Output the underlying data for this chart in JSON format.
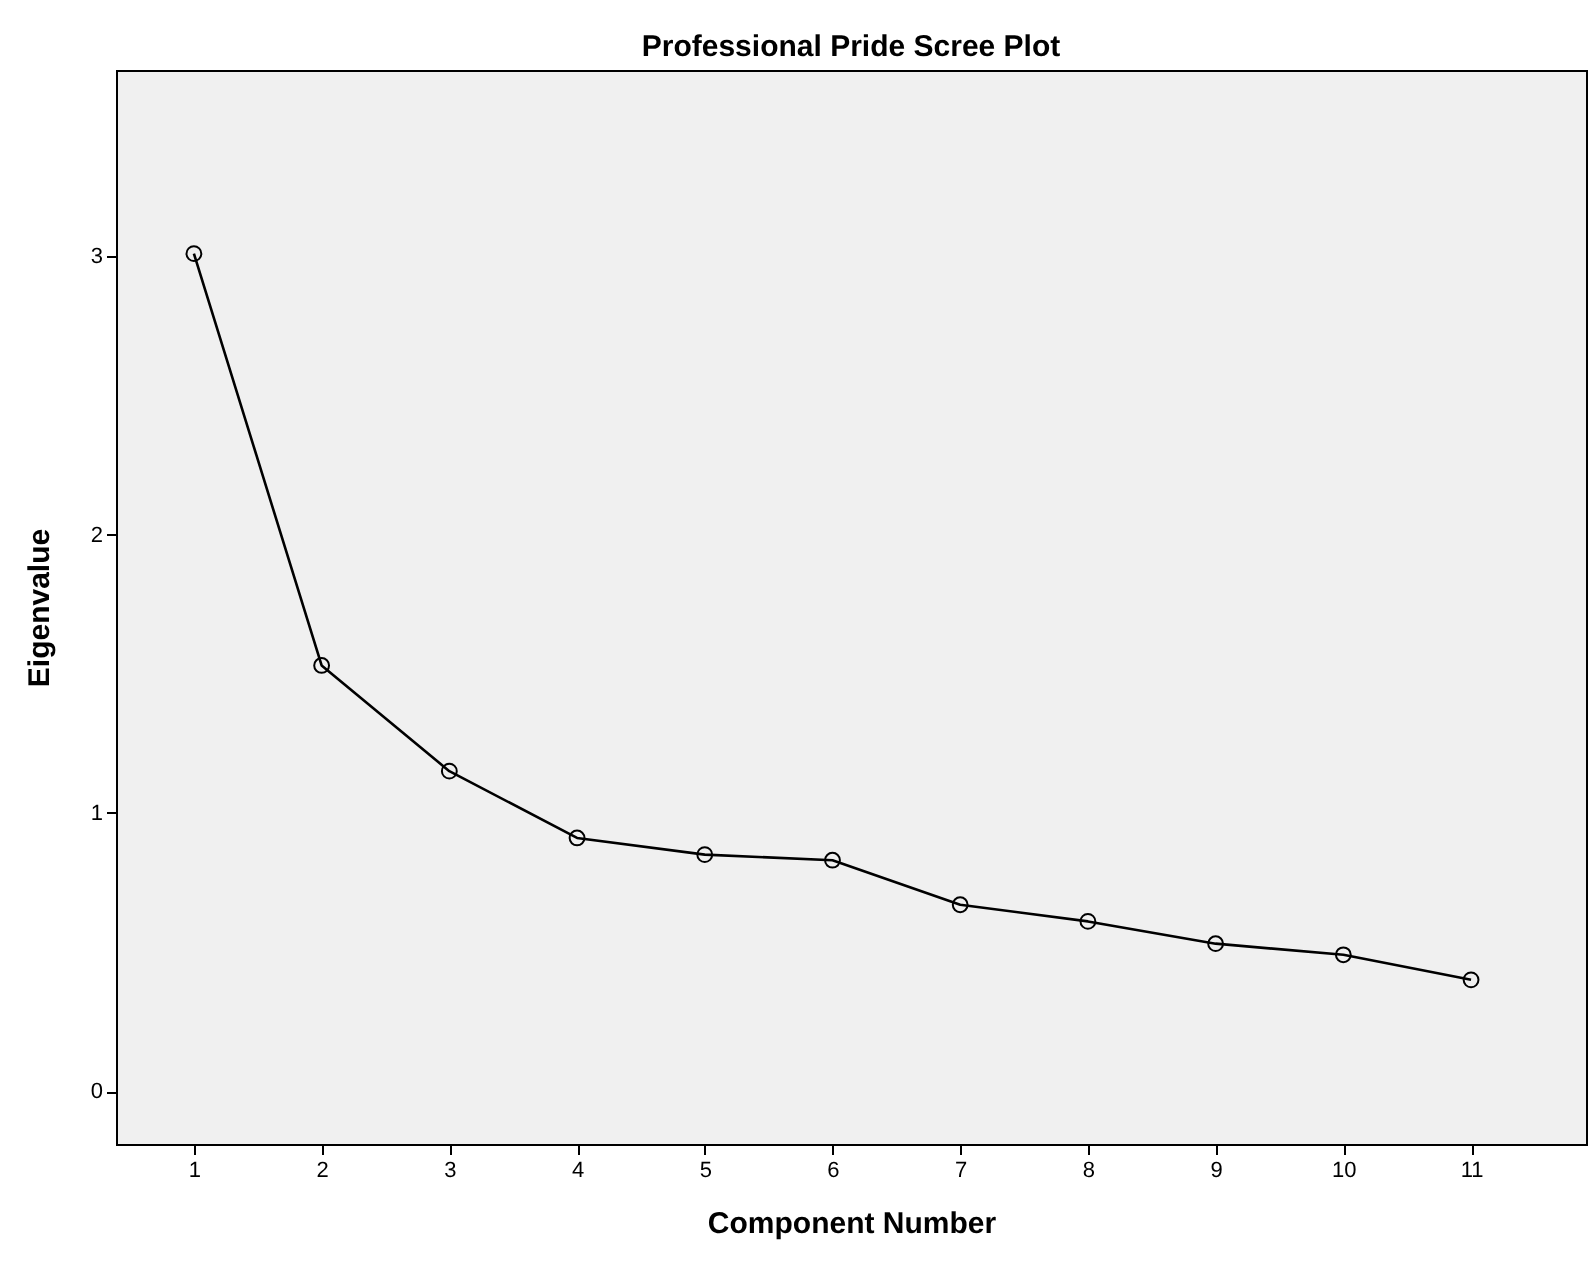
{
  "chart_data": {
    "type": "line",
    "title": "Professional Pride Scree Plot",
    "xlabel": "Component Number",
    "ylabel": "Eigenvalue",
    "x": [
      1,
      2,
      3,
      4,
      5,
      6,
      7,
      8,
      9,
      10,
      11
    ],
    "series": [
      {
        "color": "#000000",
        "values": [
          3.01,
          1.53,
          1.15,
          0.91,
          0.85,
          0.83,
          0.67,
          0.61,
          0.53,
          0.49,
          0.4
        ]
      }
    ],
    "xlim": [
      0.39,
      11.9
    ],
    "xticks": [
      1,
      2,
      3,
      4,
      5,
      6,
      7,
      8,
      9,
      10,
      11
    ],
    "ylim": [
      -0.19,
      3.67
    ],
    "yticks": [
      0,
      1,
      2,
      3
    ],
    "grid": false,
    "marker": "circle",
    "line_style": "solid"
  }
}
